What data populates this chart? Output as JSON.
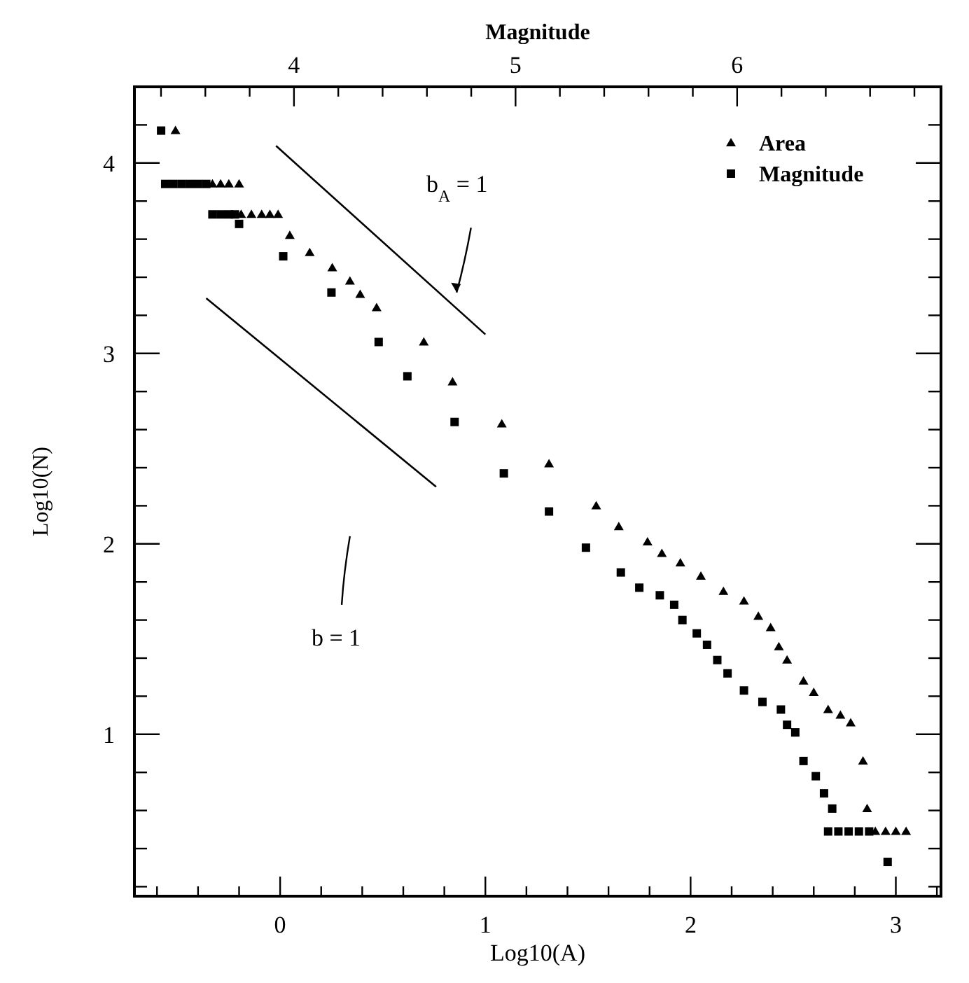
{
  "chart_data": {
    "type": "scatter",
    "xlabel": "Log10(A)",
    "ylabel": "Log10(N)",
    "x2label": "Magnitude",
    "xlim": [
      -0.71,
      3.22
    ],
    "ylim": [
      0.15,
      4.4
    ],
    "x2lim": [
      3.28,
      6.92
    ],
    "xticks": [
      {
        "value": -0.6,
        "label": null
      },
      {
        "value": -0.4,
        "label": null
      },
      {
        "value": -0.2,
        "label": null
      },
      0,
      {
        "value": 0.2,
        "label": null
      },
      {
        "value": 0.4,
        "label": null
      },
      {
        "value": 0.6,
        "label": null
      },
      {
        "value": 0.8,
        "label": null
      },
      1,
      {
        "value": 1.2,
        "label": null
      },
      {
        "value": 1.4,
        "label": null
      },
      {
        "value": 1.6,
        "label": null
      },
      {
        "value": 1.8,
        "label": null
      },
      2,
      {
        "value": 2.2,
        "label": null
      },
      {
        "value": 2.4,
        "label": null
      },
      {
        "value": 2.6,
        "label": null
      },
      {
        "value": 2.8,
        "label": null
      },
      3,
      {
        "value": 3.2,
        "label": null
      }
    ],
    "yticks": [
      {
        "value": 0.2,
        "label": null
      },
      {
        "value": 0.4,
        "label": null
      },
      {
        "value": 0.6,
        "label": null
      },
      {
        "value": 0.8,
        "label": null
      },
      1,
      {
        "value": 1.2,
        "label": null
      },
      {
        "value": 1.4,
        "label": null
      },
      {
        "value": 1.6,
        "label": null
      },
      {
        "value": 1.8,
        "label": null
      },
      2,
      {
        "value": 2.2,
        "label": null
      },
      {
        "value": 2.4,
        "label": null
      },
      {
        "value": 2.6,
        "label": null
      },
      {
        "value": 2.8,
        "label": null
      },
      3,
      {
        "value": 3.2,
        "label": null
      },
      {
        "value": 3.4,
        "label": null
      },
      {
        "value": 3.6,
        "label": null
      },
      {
        "value": 3.8,
        "label": null
      },
      4,
      {
        "value": 4.2,
        "label": null
      }
    ],
    "x2ticks": [
      {
        "value": 3.4,
        "label": null
      },
      {
        "value": 3.6,
        "label": null
      },
      {
        "value": 3.8,
        "label": null
      },
      4,
      {
        "value": 4.2,
        "label": null
      },
      {
        "value": 4.4,
        "label": null
      },
      {
        "value": 4.6,
        "label": null
      },
      {
        "value": 4.8,
        "label": null
      },
      5,
      {
        "value": 5.2,
        "label": null
      },
      {
        "value": 5.4,
        "label": null
      },
      {
        "value": 5.6,
        "label": null
      },
      {
        "value": 5.8,
        "label": null
      },
      6,
      {
        "value": 6.2,
        "label": null
      },
      {
        "value": 6.4,
        "label": null
      },
      {
        "value": 6.6,
        "label": null
      },
      {
        "value": 6.8,
        "label": null
      }
    ],
    "legend": "top right",
    "grid": false,
    "series": [
      {
        "name": "Area",
        "color": "#000000",
        "marker": "triangle",
        "x": [
          -0.51,
          -0.33,
          -0.29,
          -0.25,
          -0.2,
          -0.19,
          -0.14,
          -0.09,
          -0.05,
          -0.01,
          0.047,
          0.144,
          0.254,
          0.34,
          0.39,
          0.47,
          0.7,
          0.84,
          1.08,
          1.31,
          1.54,
          1.65,
          1.79,
          1.86,
          1.95,
          2.05,
          2.16,
          2.26,
          2.33,
          2.39,
          2.43,
          2.47,
          2.55,
          2.6,
          2.67,
          2.73,
          2.78,
          2.84,
          2.86,
          2.9,
          2.95,
          3.0,
          3.05
        ],
        "values": [
          4.17,
          3.89,
          3.89,
          3.89,
          3.89,
          3.73,
          3.73,
          3.73,
          3.73,
          3.73,
          3.62,
          3.53,
          3.45,
          3.38,
          3.31,
          3.24,
          3.06,
          2.85,
          2.63,
          2.42,
          2.2,
          2.09,
          2.01,
          1.95,
          1.9,
          1.83,
          1.75,
          1.7,
          1.62,
          1.56,
          1.46,
          1.39,
          1.28,
          1.22,
          1.13,
          1.1,
          1.06,
          0.86,
          0.61,
          0.49,
          0.49,
          0.49,
          0.49
        ]
      },
      {
        "name": "Magnitude",
        "color": "#000000",
        "marker": "square",
        "x": [
          -0.58,
          -0.56,
          -0.52,
          -0.48,
          -0.44,
          -0.4,
          -0.36,
          -0.33,
          -0.29,
          -0.25,
          -0.22,
          -0.2,
          0.015,
          0.25,
          0.48,
          0.62,
          0.85,
          1.09,
          1.31,
          1.49,
          1.66,
          1.75,
          1.85,
          1.92,
          1.96,
          2.03,
          2.08,
          2.13,
          2.18,
          2.26,
          2.35,
          2.44,
          2.47,
          2.51,
          2.55,
          2.61,
          2.65,
          2.69,
          2.67,
          2.72,
          2.77,
          2.82,
          2.87,
          2.96
        ],
        "values": [
          4.17,
          3.89,
          3.89,
          3.89,
          3.89,
          3.89,
          3.89,
          3.73,
          3.73,
          3.73,
          3.73,
          3.68,
          3.51,
          3.32,
          3.06,
          2.88,
          2.64,
          2.37,
          2.17,
          1.98,
          1.85,
          1.77,
          1.73,
          1.68,
          1.6,
          1.53,
          1.47,
          1.39,
          1.32,
          1.23,
          1.17,
          1.13,
          1.05,
          1.01,
          0.86,
          0.78,
          0.69,
          0.61,
          0.49,
          0.49,
          0.49,
          0.49,
          0.49,
          0.33
        ]
      },
      {
        "type": "line",
        "color": "#000000",
        "x": [
          -0.02,
          1.0
        ],
        "values": [
          4.09,
          3.1
        ]
      },
      {
        "type": "line",
        "color": "#000000",
        "x": [
          -0.36,
          0.76
        ],
        "values": [
          3.29,
          2.3
        ]
      }
    ],
    "annotations": [
      "b$_{A}$ = 1",
      "b = 1"
    ]
  }
}
